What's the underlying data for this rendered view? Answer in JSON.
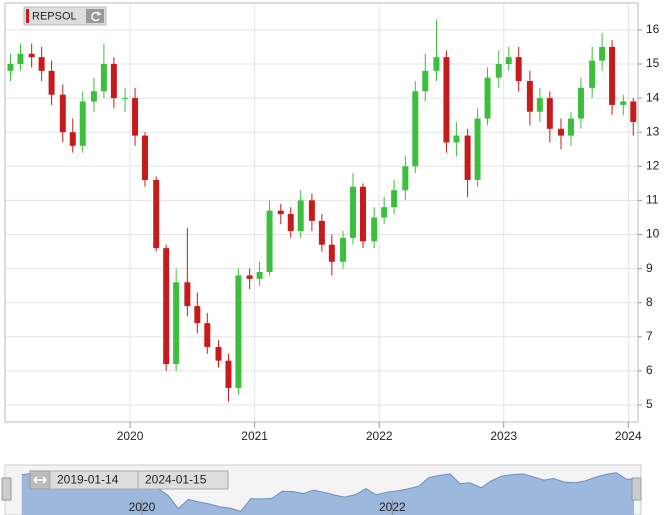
{
  "chart_data": {
    "type": "candlestick",
    "name": "REPSOL",
    "up_color": "#3cbf3c",
    "down_color": "#c71a1a",
    "x": [
      2019.04,
      2019.12,
      2019.21,
      2019.29,
      2019.37,
      2019.46,
      2019.54,
      2019.62,
      2019.71,
      2019.79,
      2019.87,
      2019.96,
      2020.04,
      2020.12,
      2020.21,
      2020.29,
      2020.37,
      2020.46,
      2020.54,
      2020.62,
      2020.71,
      2020.79,
      2020.87,
      2020.96,
      2021.04,
      2021.12,
      2021.21,
      2021.29,
      2021.37,
      2021.46,
      2021.54,
      2021.62,
      2021.71,
      2021.79,
      2021.87,
      2021.96,
      2022.04,
      2022.12,
      2022.21,
      2022.29,
      2022.37,
      2022.46,
      2022.54,
      2022.62,
      2022.71,
      2022.79,
      2022.87,
      2022.96,
      2023.04,
      2023.12,
      2023.21,
      2023.29,
      2023.37,
      2023.46,
      2023.54,
      2023.62,
      2023.71,
      2023.79,
      2023.87,
      2023.96,
      2024.04
    ],
    "open": [
      14.8,
      15.0,
      15.3,
      15.2,
      14.8,
      14.1,
      13.0,
      12.6,
      13.9,
      14.2,
      15.0,
      14.0,
      14.0,
      12.9,
      11.6,
      9.6,
      6.2,
      8.6,
      7.9,
      7.4,
      6.7,
      6.3,
      5.5,
      8.8,
      8.7,
      8.9,
      10.7,
      10.6,
      10.1,
      11.0,
      10.4,
      9.7,
      9.2,
      9.9,
      11.4,
      9.8,
      10.5,
      10.8,
      11.3,
      12.0,
      14.2,
      14.8,
      15.2,
      12.7,
      12.9,
      11.6,
      13.4,
      14.6,
      15.0,
      15.2,
      14.5,
      13.6,
      14.0,
      13.1,
      12.9,
      13.4,
      14.3,
      15.1,
      15.5,
      13.8,
      13.9
    ],
    "high": [
      15.3,
      15.6,
      15.6,
      15.5,
      15.1,
      14.4,
      13.4,
      14.2,
      14.6,
      15.6,
      15.2,
      14.3,
      14.3,
      13.0,
      11.7,
      9.7,
      9.0,
      10.2,
      8.3,
      7.7,
      6.9,
      6.5,
      9.0,
      9.0,
      9.2,
      11.0,
      10.9,
      10.8,
      11.3,
      11.2,
      10.6,
      10.0,
      10.1,
      11.8,
      11.5,
      10.8,
      11.1,
      11.6,
      12.3,
      14.5,
      15.3,
      16.3,
      15.4,
      13.3,
      13.1,
      13.7,
      14.9,
      15.4,
      15.5,
      15.5,
      14.8,
      14.3,
      14.2,
      13.4,
      13.6,
      14.6,
      15.5,
      15.9,
      15.7,
      14.1,
      14.0
    ],
    "low": [
      14.5,
      14.8,
      14.9,
      14.5,
      13.8,
      12.7,
      12.4,
      12.4,
      13.6,
      14.0,
      13.7,
      13.6,
      12.6,
      11.4,
      9.5,
      6.0,
      6.0,
      7.6,
      7.1,
      6.5,
      6.1,
      5.1,
      5.3,
      8.4,
      8.5,
      8.8,
      10.3,
      9.9,
      9.9,
      10.1,
      9.5,
      8.8,
      9.0,
      9.7,
      9.6,
      9.6,
      10.3,
      10.6,
      11.0,
      11.8,
      13.9,
      14.5,
      12.4,
      12.3,
      11.1,
      11.4,
      13.2,
      14.3,
      14.8,
      14.2,
      13.2,
      13.3,
      12.7,
      12.5,
      12.6,
      13.1,
      14.0,
      14.8,
      13.5,
      13.5,
      12.9
    ],
    "close": [
      15.0,
      15.3,
      15.2,
      14.8,
      14.1,
      13.0,
      12.6,
      13.9,
      14.2,
      15.0,
      14.0,
      14.0,
      12.9,
      11.6,
      9.6,
      6.2,
      8.6,
      7.9,
      7.4,
      6.7,
      6.3,
      5.5,
      8.8,
      8.7,
      8.9,
      10.7,
      10.6,
      10.1,
      11.0,
      10.4,
      9.7,
      9.2,
      9.9,
      11.4,
      9.8,
      10.5,
      10.8,
      11.3,
      12.0,
      14.2,
      14.8,
      15.2,
      12.7,
      12.9,
      11.6,
      13.4,
      14.6,
      15.0,
      15.2,
      14.5,
      13.6,
      14.0,
      13.1,
      12.9,
      13.4,
      14.3,
      15.1,
      15.5,
      13.8,
      13.9,
      13.3
    ],
    "xlim": [
      2019.02,
      2024.07
    ],
    "xticks": [
      2020,
      2021,
      2022,
      2023,
      2024
    ],
    "ylim": [
      4.56,
      16.73
    ],
    "yticks": [
      5,
      6,
      7,
      8,
      9,
      10,
      11,
      12,
      13,
      14,
      15,
      16
    ],
    "grid": true,
    "navigator": {
      "xlim": [
        2018.93,
        2023.93
      ],
      "xticks": [
        2020,
        2022
      ],
      "start_label": "2019-01-14",
      "end_label": "2024-01-15",
      "color": "#9db8dd"
    }
  }
}
